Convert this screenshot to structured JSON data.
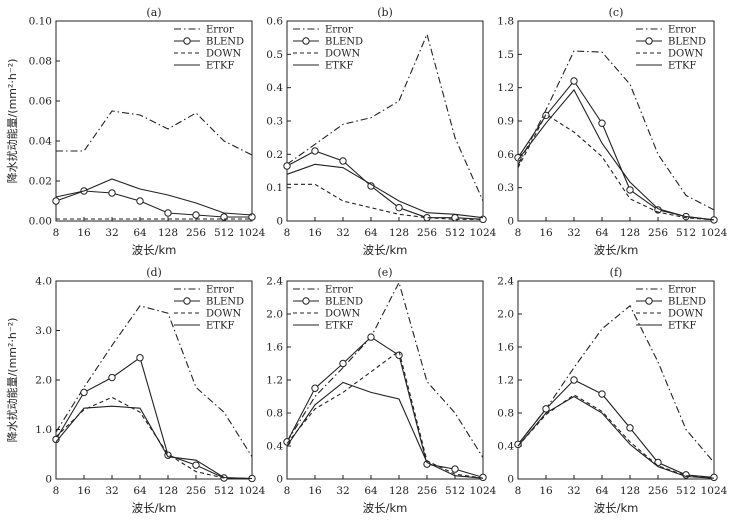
{
  "chart_data": [
    {
      "type": "line",
      "panel": "(a)",
      "categories": [
        "8",
        "16",
        "32",
        "64",
        "128",
        "256",
        "512",
        "1024"
      ],
      "ylim": [
        0,
        0.1
      ],
      "yticks": [
        "0.00",
        "0.02",
        "0.04",
        "0.06",
        "0.08",
        "0.10"
      ],
      "xlabel": "波长/km",
      "ylabel": "降水扰动能量/(mm²·h⁻²)",
      "legend": "top-right",
      "series": [
        {
          "name": "Error",
          "style": "dashdot",
          "values": [
            0.035,
            0.035,
            0.055,
            0.053,
            0.046,
            0.054,
            0.04,
            0.033
          ]
        },
        {
          "name": "BLEND",
          "style": "circle",
          "values": [
            0.01,
            0.015,
            0.014,
            0.01,
            0.004,
            0.003,
            0.002,
            0.002
          ]
        },
        {
          "name": "DOWN",
          "style": "dashed",
          "values": [
            0.001,
            0.001,
            0.001,
            0.001,
            0.001,
            0.001,
            0.001,
            0.001
          ]
        },
        {
          "name": "ETKF",
          "style": "solid",
          "values": [
            0.012,
            0.015,
            0.021,
            0.016,
            0.013,
            0.009,
            0.004,
            0.003
          ]
        }
      ]
    },
    {
      "type": "line",
      "panel": "(b)",
      "categories": [
        "8",
        "16",
        "32",
        "64",
        "128",
        "256",
        "512",
        "1024"
      ],
      "ylim": [
        0,
        0.6
      ],
      "yticks": [
        "0",
        "0.1",
        "0.2",
        "0.3",
        "0.4",
        "0.5",
        "0.6"
      ],
      "xlabel": "波长/km",
      "ylabel": "",
      "legend": "top-left",
      "series": [
        {
          "name": "Error",
          "style": "dashdot",
          "values": [
            0.17,
            0.23,
            0.29,
            0.31,
            0.36,
            0.56,
            0.25,
            0.06
          ]
        },
        {
          "name": "BLEND",
          "style": "circle",
          "values": [
            0.165,
            0.21,
            0.18,
            0.105,
            0.04,
            0.01,
            0.01,
            0.005
          ]
        },
        {
          "name": "DOWN",
          "style": "dashed",
          "values": [
            0.11,
            0.11,
            0.06,
            0.04,
            0.02,
            0.01,
            0.005,
            0.005
          ]
        },
        {
          "name": "ETKF",
          "style": "solid",
          "values": [
            0.14,
            0.17,
            0.16,
            0.11,
            0.06,
            0.025,
            0.02,
            0.01
          ]
        }
      ]
    },
    {
      "type": "line",
      "panel": "(c)",
      "categories": [
        "8",
        "16",
        "32",
        "64",
        "128",
        "256",
        "512",
        "1024"
      ],
      "ylim": [
        0,
        1.8
      ],
      "yticks": [
        "0",
        "0.3",
        "0.6",
        "0.9",
        "1.2",
        "1.5",
        "1.8"
      ],
      "xlabel": "波长/km",
      "ylabel": "",
      "legend": "top-right",
      "series": [
        {
          "name": "Error",
          "style": "dashdot",
          "values": [
            0.5,
            1.0,
            1.53,
            1.52,
            1.23,
            0.6,
            0.23,
            0.1
          ]
        },
        {
          "name": "BLEND",
          "style": "circle",
          "values": [
            0.57,
            0.95,
            1.26,
            0.88,
            0.28,
            0.1,
            0.04,
            0.01
          ]
        },
        {
          "name": "DOWN",
          "style": "dashed",
          "values": [
            0.48,
            0.96,
            0.8,
            0.58,
            0.2,
            0.08,
            0.03,
            0.01
          ]
        },
        {
          "name": "ETKF",
          "style": "solid",
          "values": [
            0.55,
            0.88,
            1.18,
            0.7,
            0.35,
            0.11,
            0.04,
            0.01
          ]
        }
      ]
    },
    {
      "type": "line",
      "panel": "(d)",
      "categories": [
        "8",
        "16",
        "32",
        "64",
        "128",
        "256",
        "512",
        "1024"
      ],
      "ylim": [
        0,
        4.0
      ],
      "yticks": [
        "0",
        "1.0",
        "2.0",
        "3.0",
        "4.0"
      ],
      "xlabel": "波长/km",
      "ylabel": "降水扰动能量/(mm²·h⁻²)",
      "legend": "top-right",
      "series": [
        {
          "name": "Error",
          "style": "dashdot",
          "values": [
            0.95,
            1.85,
            2.7,
            3.5,
            3.35,
            1.85,
            1.35,
            0.45
          ]
        },
        {
          "name": "BLEND",
          "style": "circle",
          "values": [
            0.8,
            1.75,
            2.05,
            2.45,
            0.48,
            0.28,
            0.02,
            0.01
          ]
        },
        {
          "name": "DOWN",
          "style": "dashed",
          "values": [
            0.85,
            1.4,
            1.65,
            1.35,
            0.5,
            0.15,
            0.02,
            0.01
          ]
        },
        {
          "name": "ETKF",
          "style": "solid",
          "values": [
            0.75,
            1.43,
            1.47,
            1.43,
            0.45,
            0.38,
            0.03,
            0.01
          ]
        }
      ]
    },
    {
      "type": "line",
      "panel": "(e)",
      "categories": [
        "8",
        "16",
        "32",
        "64",
        "128",
        "256",
        "512",
        "1024"
      ],
      "ylim": [
        0,
        2.4
      ],
      "yticks": [
        "0",
        "0.4",
        "0.8",
        "1.2",
        "1.6",
        "2.0",
        "2.4"
      ],
      "xlabel": "波长/km",
      "ylabel": "",
      "legend": "top-left",
      "series": [
        {
          "name": "Error",
          "style": "dashdot",
          "values": [
            0.45,
            1.0,
            1.35,
            1.72,
            2.38,
            1.18,
            0.8,
            0.26
          ]
        },
        {
          "name": "BLEND",
          "style": "circle",
          "values": [
            0.45,
            1.1,
            1.4,
            1.72,
            1.5,
            0.18,
            0.12,
            0.02
          ]
        },
        {
          "name": "DOWN",
          "style": "dashed",
          "values": [
            0.43,
            0.85,
            1.05,
            1.3,
            1.55,
            0.22,
            0.06,
            0.01
          ]
        },
        {
          "name": "ETKF",
          "style": "solid",
          "values": [
            0.4,
            0.9,
            1.17,
            1.05,
            0.97,
            0.2,
            0.04,
            0.01
          ]
        }
      ]
    },
    {
      "type": "line",
      "panel": "(f)",
      "categories": [
        "8",
        "16",
        "32",
        "64",
        "128",
        "256",
        "512",
        "1024"
      ],
      "ylim": [
        0,
        2.4
      ],
      "yticks": [
        "0",
        "0.4",
        "0.8",
        "1.2",
        "1.6",
        "2.0",
        "2.4"
      ],
      "xlabel": "波长/km",
      "ylabel": "",
      "legend": "top-right",
      "series": [
        {
          "name": "Error",
          "style": "dashdot",
          "values": [
            0.42,
            0.85,
            1.35,
            1.82,
            2.1,
            1.42,
            0.6,
            0.2
          ]
        },
        {
          "name": "BLEND",
          "style": "circle",
          "values": [
            0.42,
            0.85,
            1.2,
            1.03,
            0.62,
            0.2,
            0.05,
            0.02
          ]
        },
        {
          "name": "DOWN",
          "style": "dashed",
          "values": [
            0.4,
            0.78,
            1.02,
            0.82,
            0.45,
            0.16,
            0.04,
            0.01
          ]
        },
        {
          "name": "ETKF",
          "style": "solid",
          "values": [
            0.4,
            0.8,
            1.0,
            0.8,
            0.42,
            0.15,
            0.03,
            0.01
          ]
        }
      ]
    }
  ]
}
